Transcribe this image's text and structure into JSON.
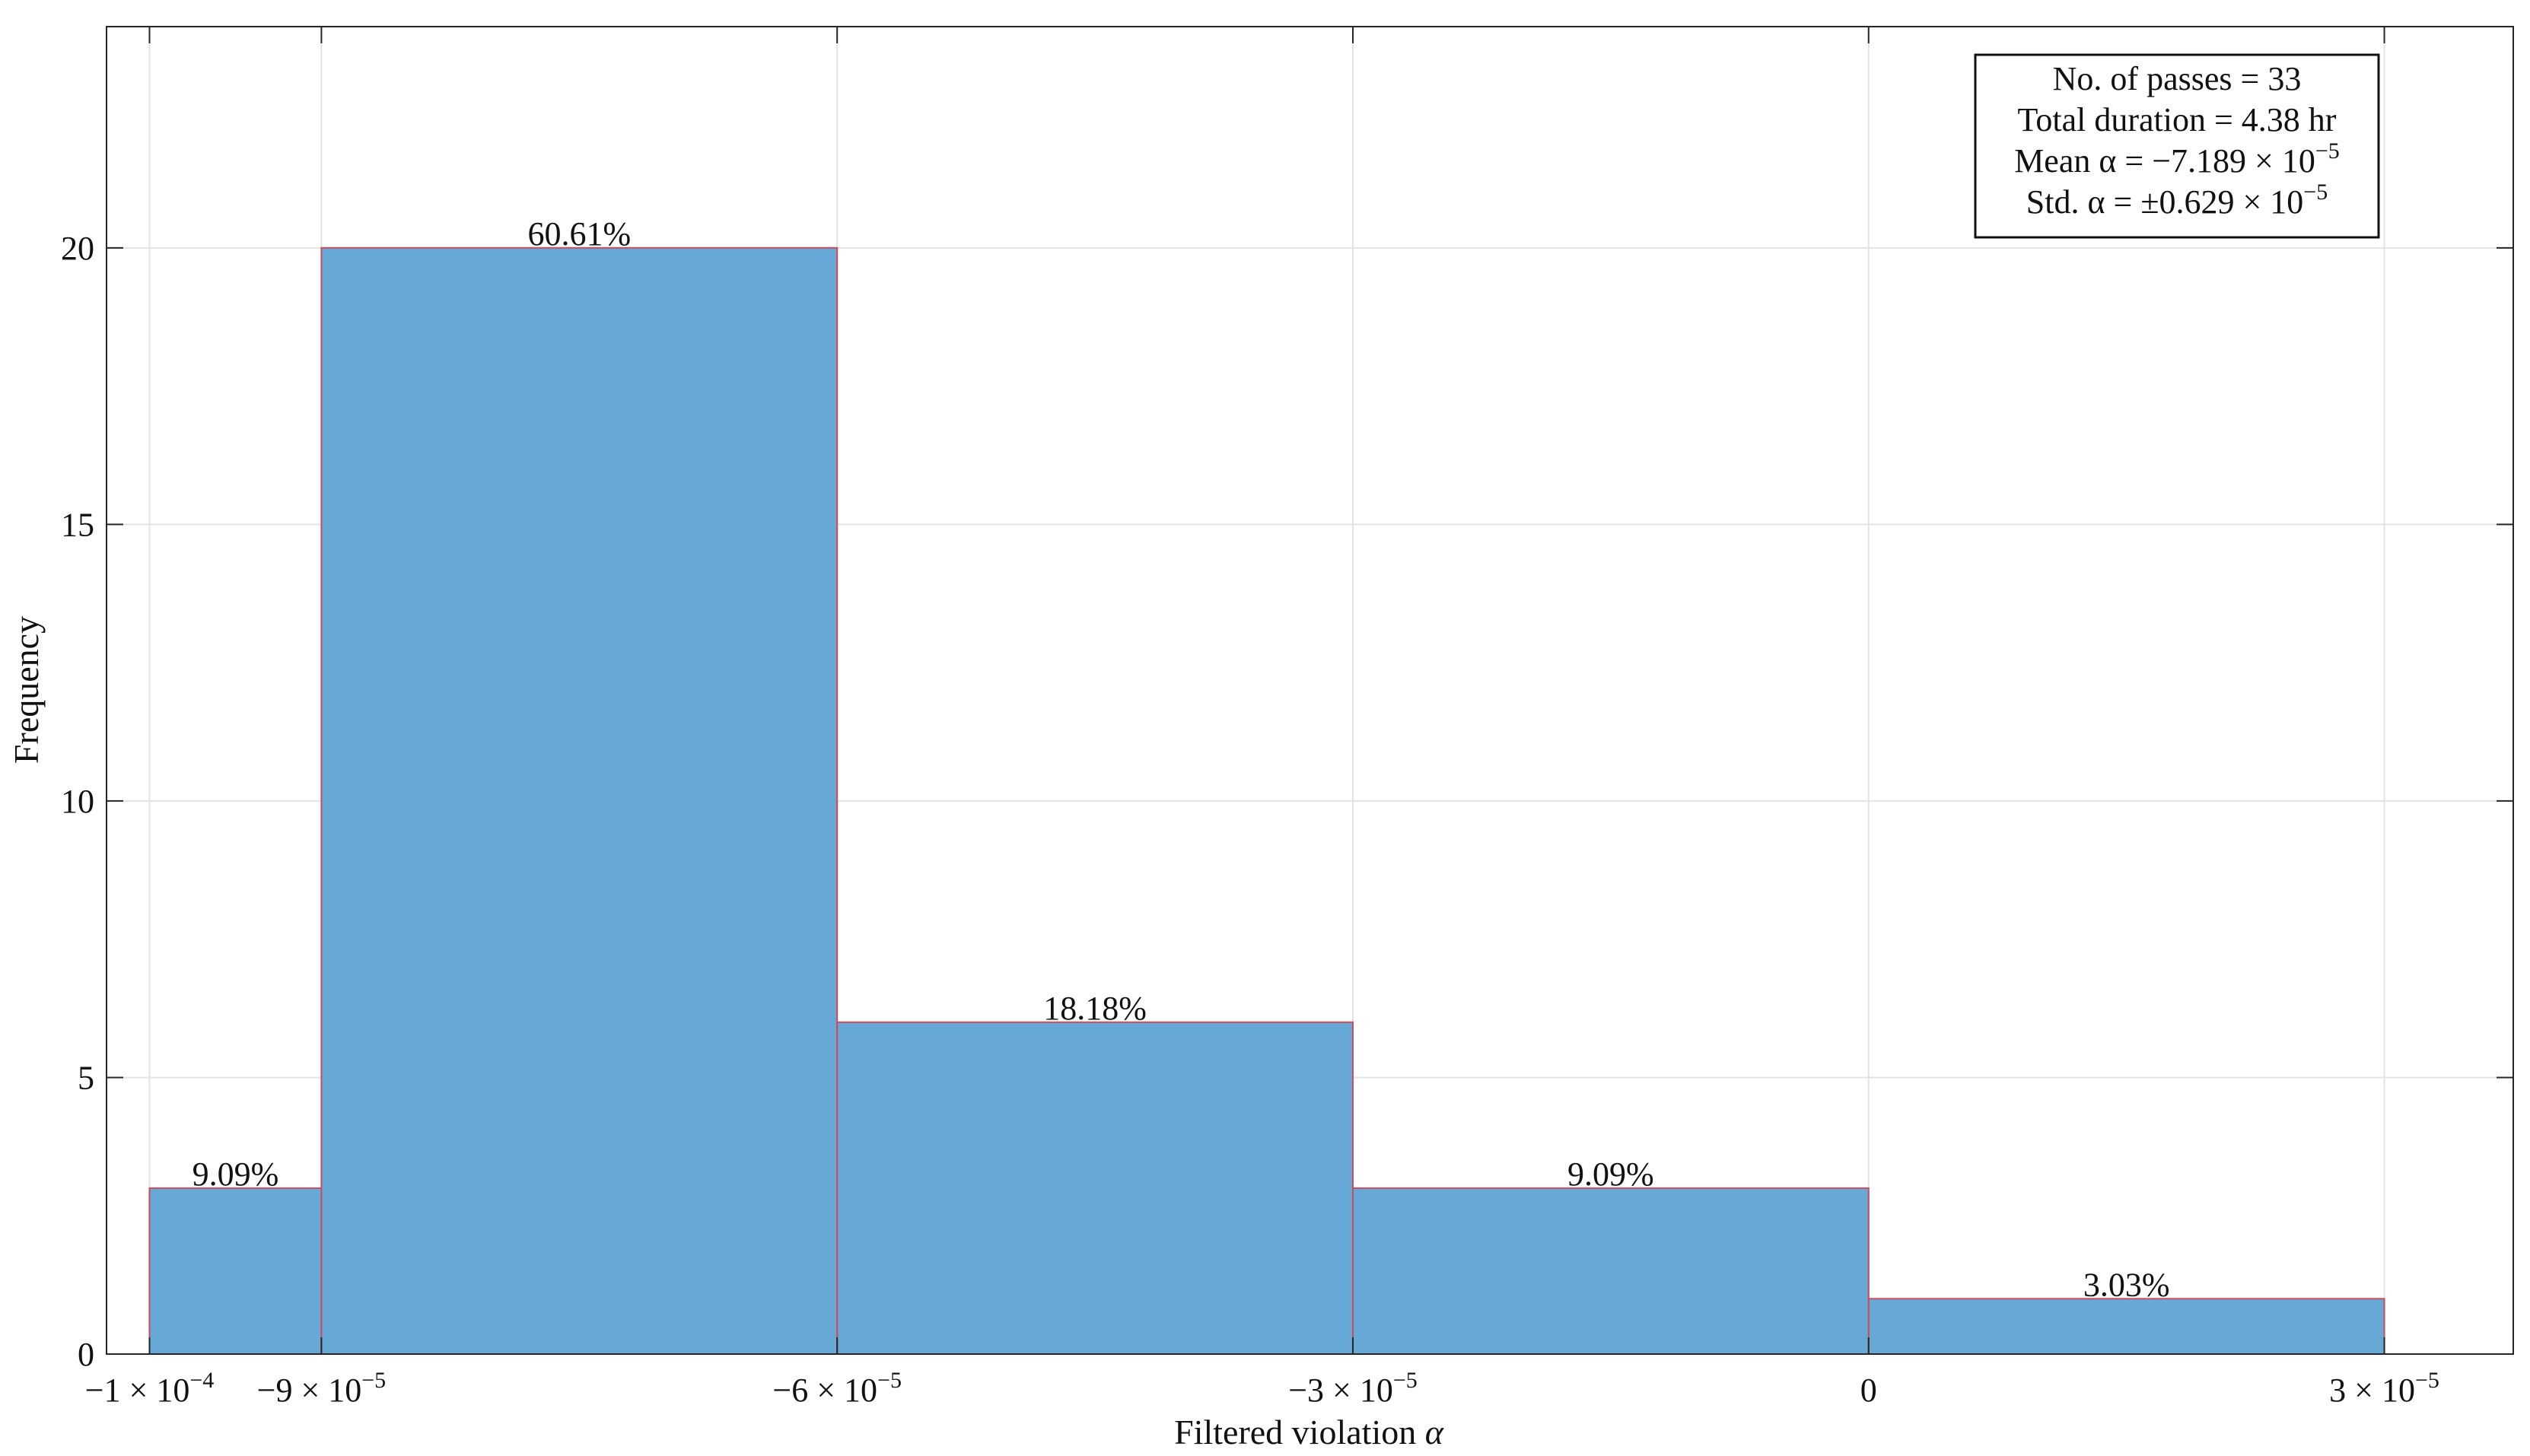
{
  "chart_data": {
    "type": "bar",
    "title": "",
    "xlabel_text": "Filtered violation",
    "xlabel_symbol": "α",
    "ylabel": "Frequency",
    "grid": true,
    "bin_edges": [
      -0.0001,
      -9e-05,
      -6e-05,
      -3e-05,
      0,
      3e-05
    ],
    "values": [
      3,
      20,
      6,
      3,
      1
    ],
    "value_labels": [
      "9.09%",
      "60.61%",
      "18.18%",
      "9.09%",
      "3.03%"
    ],
    "xlim": [
      -0.0001025,
      3.75e-05
    ],
    "ylim": [
      0,
      24
    ],
    "yticks": [
      0,
      5,
      10,
      15,
      20
    ],
    "xticks": [
      {
        "value": -0.0001,
        "mantissa": "−1 × 10",
        "exponent": "−4"
      },
      {
        "value": -9e-05,
        "mantissa": "−9 × 10",
        "exponent": "−5"
      },
      {
        "value": -6e-05,
        "mantissa": "−6 × 10",
        "exponent": "−5"
      },
      {
        "value": -3e-05,
        "mantissa": "−3 × 10",
        "exponent": "−5"
      },
      {
        "value": 0,
        "mantissa": "0",
        "exponent": ""
      },
      {
        "value": 3e-05,
        "mantissa": "3 × 10",
        "exponent": "−5"
      }
    ],
    "bar_fill": "#67a9d6",
    "bar_edge": "#cf4a5b",
    "stats_box": {
      "placement": "top-right",
      "lines": [
        {
          "text": "No. of passes = 33",
          "sup": ""
        },
        {
          "text": "Total duration = 4.38 hr",
          "sup": ""
        },
        {
          "text": "Mean α = −7.189 × 10",
          "sup": "−5"
        },
        {
          "text": "Std. α = ±0.629 × 10",
          "sup": "−5"
        }
      ]
    }
  }
}
